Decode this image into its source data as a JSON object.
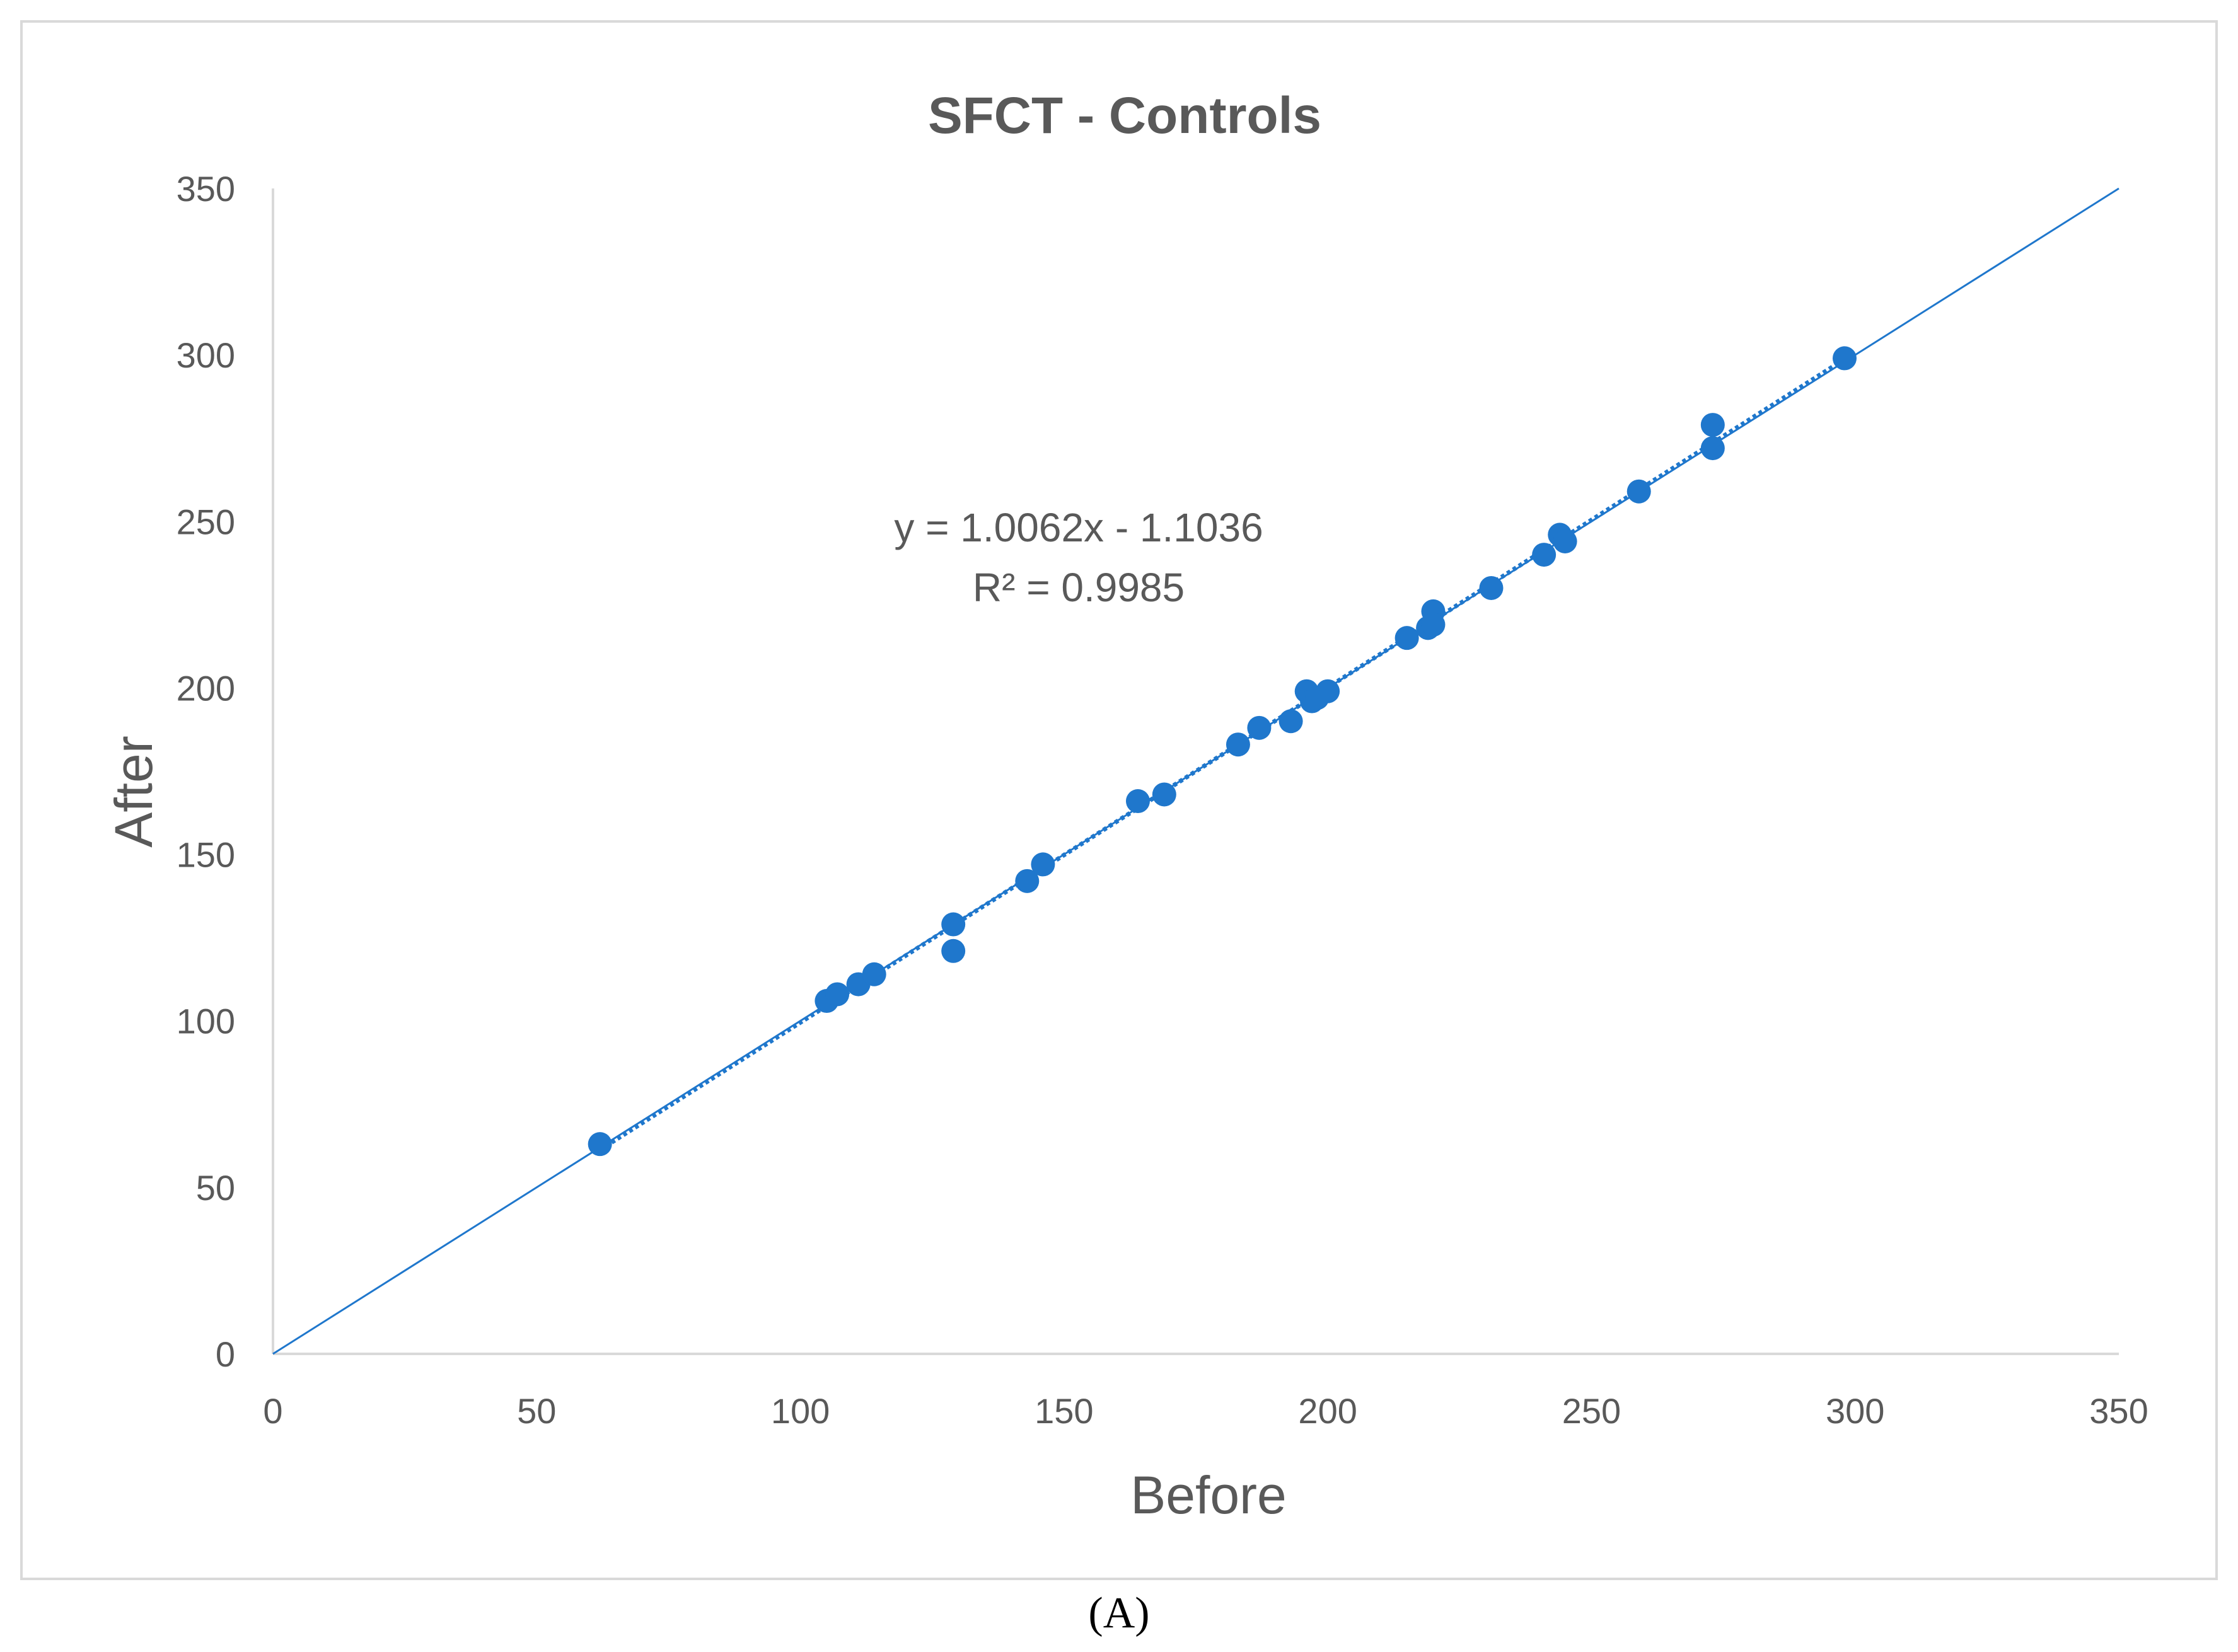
{
  "panel_label": "(A)",
  "colors": {
    "series": "#1f77cc",
    "axis": "#d9d9d9",
    "text": "#595959"
  },
  "chart_data": {
    "type": "scatter",
    "title": "SFCT - Controls",
    "xlabel": "Before",
    "ylabel": "After",
    "xlim": [
      0,
      350
    ],
    "ylim": [
      0,
      350
    ],
    "xticks": [
      "0",
      "50",
      "100",
      "150",
      "200",
      "250",
      "300",
      "350"
    ],
    "yticks": [
      "0",
      "50",
      "100",
      "150",
      "200",
      "250",
      "300",
      "350"
    ],
    "grid": false,
    "legend": "none",
    "trendline": {
      "type": "linear",
      "style": "dotted",
      "slope": 1.0062,
      "intercept": -1.1036,
      "equation": "y = 1.0062x - 1.1036",
      "r2_label": "R² = 0.9985"
    },
    "reference_line": {
      "type": "identity",
      "style": "solid",
      "from": [
        0,
        0
      ],
      "to": [
        350,
        350
      ]
    },
    "series": [
      {
        "points": [
          [
            62,
            63
          ],
          [
            105,
            106
          ],
          [
            107,
            108
          ],
          [
            111,
            111
          ],
          [
            114,
            114
          ],
          [
            129,
            129
          ],
          [
            129,
            121
          ],
          [
            143,
            142
          ],
          [
            146,
            147
          ],
          [
            164,
            166
          ],
          [
            169,
            168
          ],
          [
            183,
            183
          ],
          [
            187,
            188
          ],
          [
            193,
            190
          ],
          [
            196,
            199
          ],
          [
            197,
            196
          ],
          [
            198,
            197
          ],
          [
            200,
            199
          ],
          [
            215,
            215
          ],
          [
            219,
            218
          ],
          [
            220,
            223
          ],
          [
            220,
            219
          ],
          [
            231,
            230
          ],
          [
            241,
            240
          ],
          [
            244,
            246
          ],
          [
            245,
            244
          ],
          [
            259,
            259
          ],
          [
            273,
            279
          ],
          [
            273,
            272
          ],
          [
            298,
            299
          ]
        ]
      }
    ]
  }
}
